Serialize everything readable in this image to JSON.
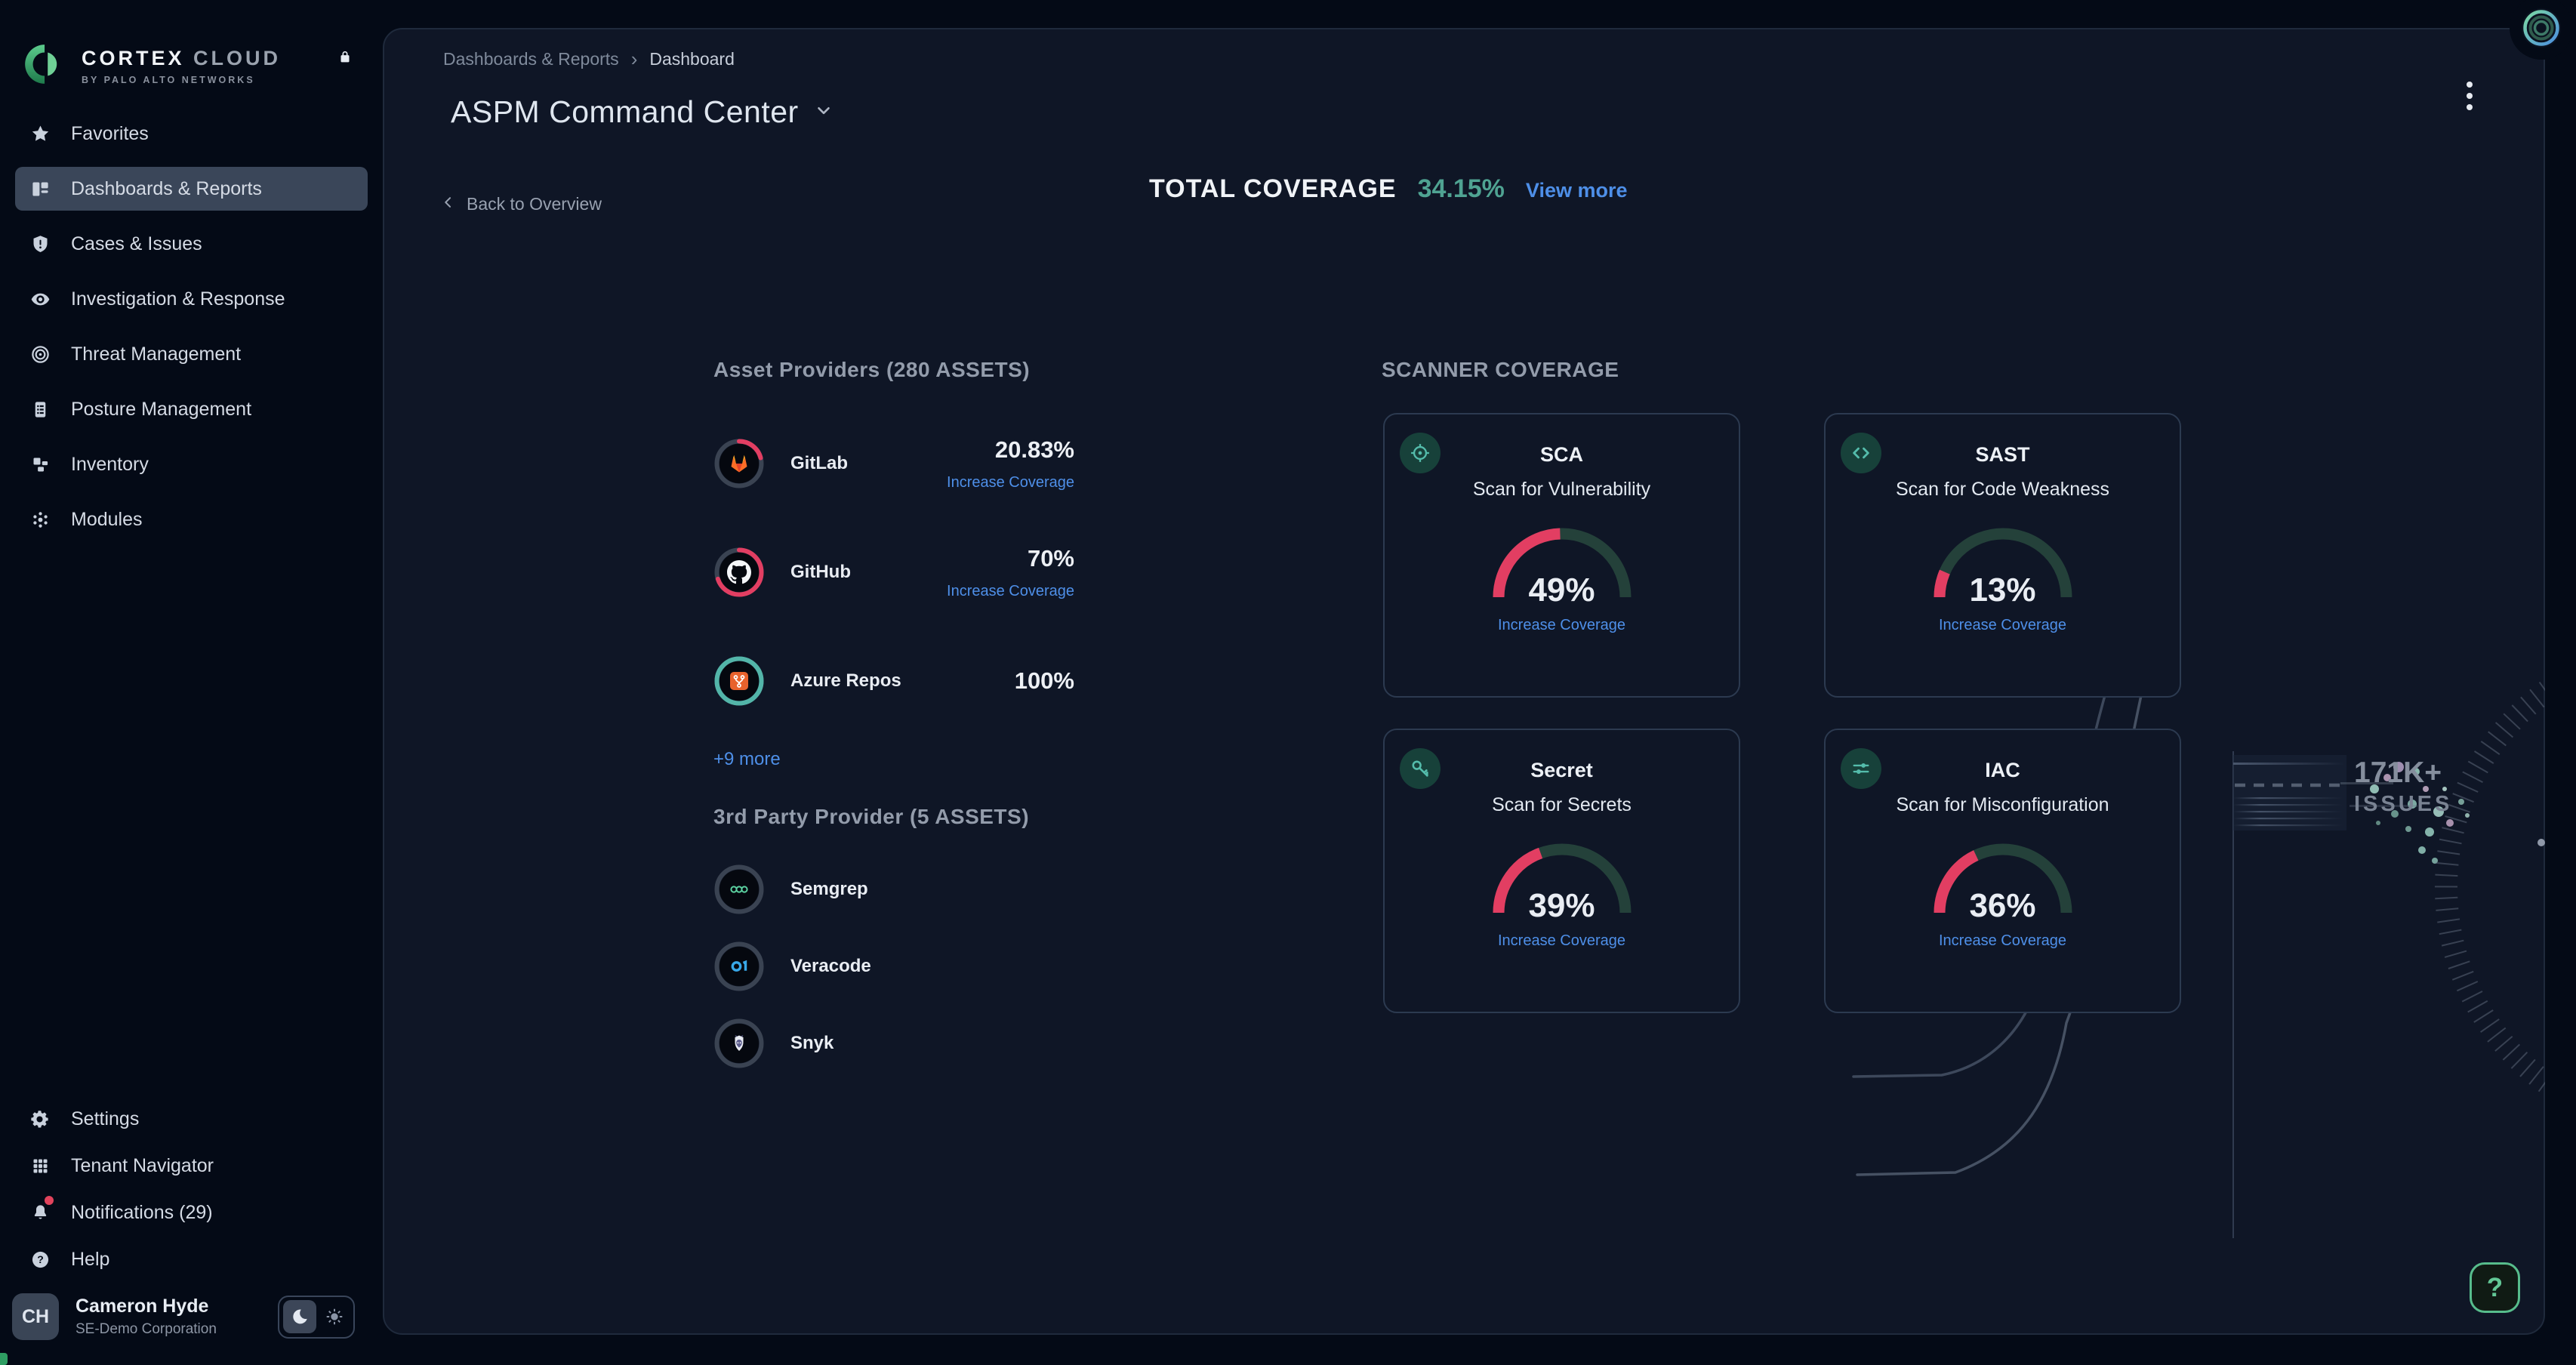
{
  "brand": {
    "title_primary": "CORTEX",
    "title_secondary": "CLOUD",
    "subtitle": "BY PALO ALTO NETWORKS"
  },
  "sidebar": {
    "items": [
      {
        "label": "Favorites",
        "icon": "star",
        "selected": false
      },
      {
        "label": "Dashboards & Reports",
        "icon": "dashboard",
        "selected": true
      },
      {
        "label": "Cases & Issues",
        "icon": "shield-alert",
        "selected": false
      },
      {
        "label": "Investigation & Response",
        "icon": "eye",
        "selected": false
      },
      {
        "label": "Threat Management",
        "icon": "target",
        "selected": false
      },
      {
        "label": "Posture Management",
        "icon": "clipboard",
        "selected": false
      },
      {
        "label": "Inventory",
        "icon": "blocks",
        "selected": false
      },
      {
        "label": "Modules",
        "icon": "modules",
        "selected": false
      }
    ],
    "footer_items": [
      {
        "label": "Settings",
        "icon": "gear",
        "badge": false
      },
      {
        "label": "Tenant Navigator",
        "icon": "grid",
        "badge": false
      },
      {
        "label": "Notifications (29)",
        "icon": "bell",
        "badge": true
      },
      {
        "label": "Help",
        "icon": "help",
        "badge": false
      }
    ],
    "user": {
      "initials": "CH",
      "name": "Cameron Hyde",
      "org": "SE-Demo Corporation"
    }
  },
  "header": {
    "breadcrumb": [
      "Dashboards & Reports",
      "Dashboard"
    ],
    "breadcrumb_separator": "›",
    "title": "ASPM Command Center",
    "back_label": "Back to Overview",
    "total_coverage_label": "TOTAL COVERAGE",
    "total_coverage_value": "34.15%",
    "view_more_label": "View more"
  },
  "providers": {
    "heading": "Asset Providers (280 ASSETS)",
    "rows": [
      {
        "name": "GitLab",
        "pct": 20.83,
        "pct_label": "20.83%",
        "link": "Increase Coverage",
        "ring_color": "#E23E62",
        "logo": "gitlab"
      },
      {
        "name": "GitHub",
        "pct": 70,
        "pct_label": "70%",
        "link": "Increase Coverage",
        "ring_color": "#E23E62",
        "logo": "github"
      },
      {
        "name": "Azure Repos",
        "pct": 100,
        "pct_label": "100%",
        "link": "",
        "ring_color": "#53B5A9",
        "logo": "azure"
      }
    ],
    "more_link": "+9 more",
    "third_party_heading": "3rd Party Provider (5 ASSETS)",
    "third_party_rows": [
      {
        "name": "Semgrep",
        "logo": "semgrep"
      },
      {
        "name": "Veracode",
        "logo": "veracode"
      },
      {
        "name": "Snyk",
        "logo": "snyk"
      }
    ]
  },
  "scanners": {
    "heading": "SCANNER COVERAGE",
    "cards": [
      {
        "title": "SCA",
        "subtitle": "Scan for Vulnerability",
        "pct": 49,
        "pct_label": "49%",
        "link": "Increase Coverage",
        "icon": "target-scope"
      },
      {
        "title": "SAST",
        "subtitle": "Scan for Code Weakness",
        "pct": 13,
        "pct_label": "13%",
        "link": "Increase Coverage",
        "icon": "code"
      },
      {
        "title": "Secret",
        "subtitle": "Scan for Secrets",
        "pct": 39,
        "pct_label": "39%",
        "link": "Increase Coverage",
        "icon": "key"
      },
      {
        "title": "IAC",
        "subtitle": "Scan for Misconfiguration",
        "pct": 36,
        "pct_label": "36%",
        "link": "Increase Coverage",
        "icon": "sliders"
      }
    ]
  },
  "decor": {
    "issues_value": "171K+",
    "issues_label": "ISSUES"
  },
  "help_button_label": "?",
  "colors": {
    "accent_blue": "#4E8FE8",
    "accent_teal": "#4FA392",
    "gauge_fill": "#E23E62",
    "gauge_track": "#24413A",
    "ring_track": "#3A4352",
    "panel_bg": "#0F1626",
    "page_bg": "#040A16",
    "selected_item_bg": "#3A4659",
    "notification_dot": "#E2435C"
  }
}
